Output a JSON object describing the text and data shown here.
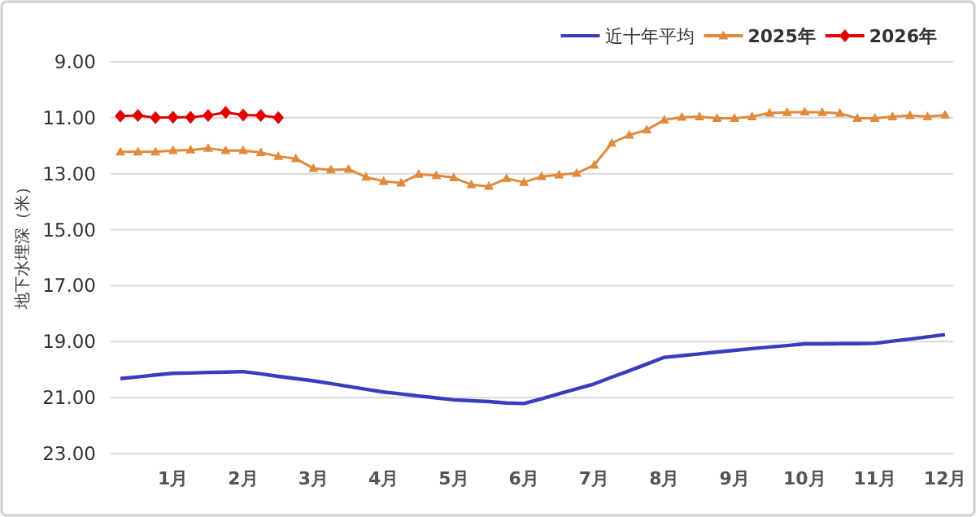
{
  "chart_data": {
    "type": "line",
    "ylabel": "地下水埋深（米）",
    "categories": [
      null,
      null,
      null,
      "1月",
      null,
      null,
      null,
      "2月",
      null,
      null,
      null,
      "3月",
      null,
      null,
      null,
      "4月",
      null,
      null,
      null,
      "5月",
      null,
      null,
      null,
      "6月",
      null,
      null,
      null,
      "7月",
      null,
      null,
      null,
      "8月",
      null,
      null,
      null,
      "9月",
      null,
      null,
      null,
      "10月",
      null,
      null,
      null,
      "11月",
      null,
      null,
      null,
      "12月"
    ],
    "ylim": [
      23,
      9
    ],
    "yticks": [
      {
        "value": 9,
        "label": "9.00"
      },
      {
        "value": 11,
        "label": "11.00"
      },
      {
        "value": 13,
        "label": "13.00"
      },
      {
        "value": 15,
        "label": "15.00"
      },
      {
        "value": 17,
        "label": "17.00"
      },
      {
        "value": 19,
        "label": "19.00"
      },
      {
        "value": 21,
        "label": "21.00"
      },
      {
        "value": 23,
        "label": "23.00"
      }
    ],
    "grid": "y",
    "legend": "top right",
    "series": [
      {
        "name": "近十年平均",
        "color": "#3b3bbf",
        "marker": "none",
        "values": [
          20.32,
          20.26,
          20.19,
          20.13,
          20.12,
          20.1,
          20.09,
          20.07,
          20.15,
          20.24,
          20.32,
          20.4,
          20.5,
          20.6,
          20.7,
          20.8,
          20.87,
          20.94,
          21.01,
          21.08,
          21.11,
          21.14,
          21.19,
          21.21,
          21.04,
          20.86,
          20.69,
          20.51,
          20.27,
          20.04,
          19.8,
          19.56,
          19.5,
          19.44,
          19.37,
          19.31,
          19.25,
          19.19,
          19.14,
          19.08,
          19.08,
          19.07,
          19.07,
          19.06,
          18.98,
          18.91,
          18.83,
          18.75
        ]
      },
      {
        "name": "2025年",
        "color": "#e08a3c",
        "marker": "triangle",
        "values": [
          12.22,
          12.22,
          12.22,
          12.17,
          12.15,
          12.09,
          12.17,
          12.17,
          12.24,
          12.38,
          12.46,
          12.81,
          12.86,
          12.84,
          13.12,
          13.27,
          13.33,
          13.02,
          13.06,
          13.14,
          13.39,
          13.45,
          13.17,
          13.31,
          13.1,
          13.04,
          12.98,
          12.69,
          11.91,
          11.62,
          11.43,
          11.08,
          10.98,
          10.96,
          11.02,
          11.02,
          10.96,
          10.83,
          10.81,
          10.79,
          10.81,
          10.84,
          11.02,
          11.02,
          10.96,
          10.92,
          10.96,
          10.9
        ]
      },
      {
        "name": "2026年",
        "color": "#e00000",
        "marker": "diamond",
        "values": [
          10.94,
          10.92,
          11.0,
          10.98,
          10.98,
          10.92,
          10.81,
          10.9,
          10.92,
          11.0,
          null,
          null,
          null,
          null,
          null,
          null,
          null,
          null,
          null,
          null,
          null,
          null,
          null,
          null,
          null,
          null,
          null,
          null,
          null,
          null,
          null,
          null,
          null,
          null,
          null,
          null,
          null,
          null,
          null,
          null,
          null,
          null,
          null,
          null,
          null,
          null,
          null,
          null
        ]
      }
    ]
  }
}
